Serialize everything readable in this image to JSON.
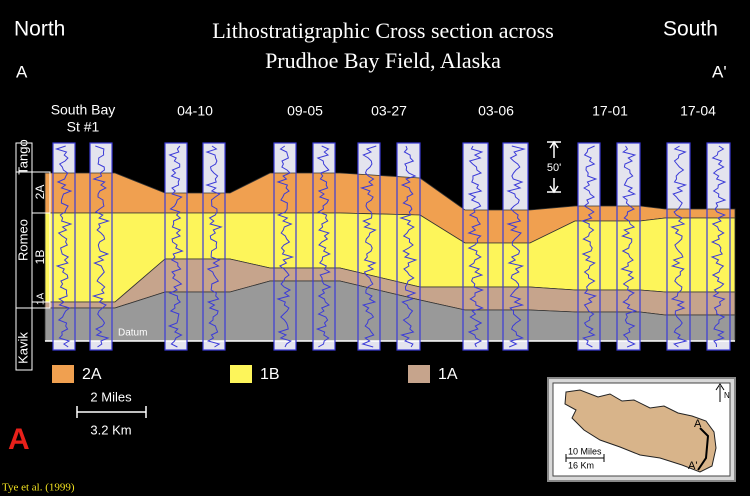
{
  "header": {
    "left_direction": "North",
    "left_point": "A",
    "right_direction": "South",
    "right_point": "A'",
    "title": [
      "Lithostratigraphic Cross section across",
      "Prudhoe Bay Field, Alaska"
    ]
  },
  "wells": [
    {
      "lines": [
        "South Bay",
        "St #1"
      ]
    },
    {
      "lines": [
        "04-10"
      ]
    },
    {
      "lines": [
        "09-05"
      ]
    },
    {
      "lines": [
        "03-27"
      ]
    },
    {
      "lines": [
        "03-06"
      ]
    },
    {
      "lines": [
        "17-01"
      ]
    },
    {
      "lines": [
        "17-04"
      ]
    }
  ],
  "strat_column": {
    "tango": "Tango",
    "romeo": "Romeo",
    "kavik": "Kavik",
    "units": [
      "2A",
      "1B",
      "1A"
    ]
  },
  "vertical_scale": "50'",
  "datum": "Datum",
  "legend": [
    "2A",
    "1B",
    "1A"
  ],
  "scale_bar": {
    "miles": "2 Miles",
    "km": "3.2 Km"
  },
  "figure_label": "A",
  "citation": "Tye et al. (1999)",
  "inset": {
    "north": "N",
    "start": "A",
    "end": "A'",
    "miles": "10 Miles",
    "km": "16 Km"
  }
}
